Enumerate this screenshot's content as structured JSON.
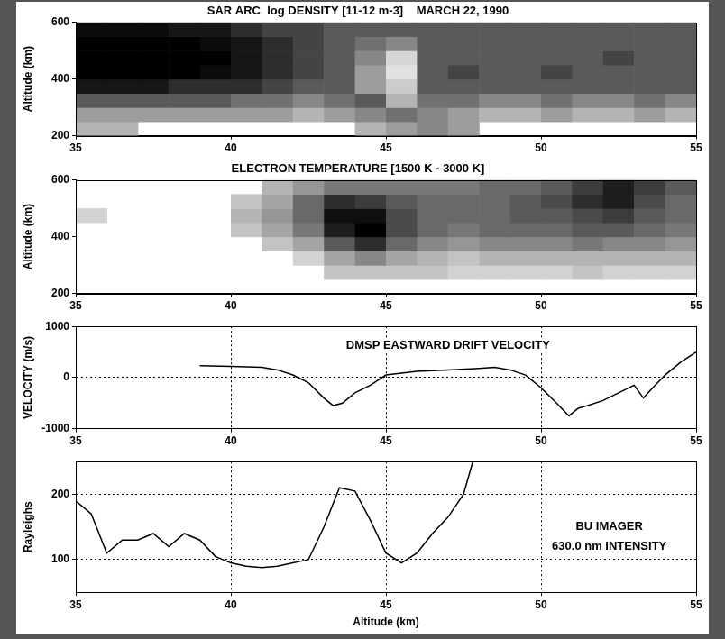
{
  "chart_data": [
    {
      "type": "heatmap",
      "title": "SAR ARC  log DENSITY [11-12 m-3]    MARCH 22, 1990",
      "y_label": "Altitude (km)",
      "x_bins": [
        35,
        36,
        37,
        38,
        39,
        40,
        41,
        42,
        43,
        44,
        45,
        46,
        47,
        48,
        49,
        50,
        51,
        52,
        53,
        54,
        55
      ],
      "y_bins": [
        200,
        250,
        300,
        350,
        400,
        450,
        500,
        550,
        600
      ],
      "cells": [
        [
          11.2,
          11.2,
          null,
          null,
          null,
          null,
          null,
          null,
          null,
          11.2,
          11.3,
          11.4,
          11.3,
          null,
          null,
          null,
          null,
          null,
          null,
          null
        ],
        [
          11.3,
          11.3,
          11.3,
          11.3,
          11.3,
          11.3,
          11.3,
          11.2,
          11.3,
          11.4,
          11.5,
          11.4,
          11.3,
          11.2,
          11.2,
          11.3,
          11.2,
          11.2,
          11.3,
          11.2
        ],
        [
          11.6,
          11.6,
          11.6,
          11.6,
          11.6,
          11.5,
          11.5,
          11.4,
          11.5,
          11.6,
          11.2,
          11.5,
          11.5,
          11.4,
          11.4,
          11.5,
          11.4,
          11.4,
          11.5,
          11.4
        ],
        [
          11.9,
          11.9,
          11.9,
          11.8,
          11.8,
          11.8,
          11.7,
          11.6,
          11.6,
          11.3,
          11.1,
          11.6,
          11.6,
          11.6,
          11.6,
          11.6,
          11.6,
          11.6,
          11.6,
          11.6
        ],
        [
          12,
          12,
          12,
          12,
          11.95,
          11.9,
          11.8,
          11.7,
          11.6,
          11.3,
          11.0,
          11.6,
          11.7,
          11.6,
          11.6,
          11.7,
          11.6,
          11.6,
          11.6,
          11.6
        ],
        [
          12,
          12,
          12,
          12,
          12,
          11.9,
          11.8,
          11.7,
          11.6,
          11.4,
          11.05,
          11.6,
          11.6,
          11.6,
          11.6,
          11.6,
          11.6,
          11.7,
          11.6,
          11.6
        ],
        [
          12,
          12,
          12,
          12,
          11.95,
          11.9,
          11.8,
          11.7,
          11.6,
          11.5,
          11.4,
          11.6,
          11.6,
          11.6,
          11.6,
          11.6,
          11.6,
          11.6,
          11.6,
          11.6
        ],
        [
          11.95,
          11.95,
          11.95,
          11.9,
          11.9,
          11.8,
          11.7,
          11.7,
          11.6,
          11.6,
          11.6,
          11.6,
          11.6,
          11.6,
          11.6,
          11.6,
          11.6,
          11.6,
          11.6,
          11.6
        ]
      ],
      "zlim": [
        11,
        12
      ],
      "xlim": [
        35,
        55
      ],
      "xticks": [
        35,
        40,
        45,
        50,
        55
      ],
      "ylim": [
        200,
        600
      ],
      "yticks": [
        200,
        400,
        600
      ],
      "grid": false
    },
    {
      "type": "heatmap",
      "title": "ELECTRON TEMPERATURE [1500 K - 3000 K]",
      "y_label": "Altitude (km)",
      "x_bins": [
        35,
        36,
        37,
        38,
        39,
        40,
        41,
        42,
        43,
        44,
        45,
        46,
        47,
        48,
        49,
        50,
        51,
        52,
        53,
        54,
        55
      ],
      "y_bins": [
        200,
        250,
        300,
        350,
        400,
        450,
        500,
        550,
        600
      ],
      "cells": [
        [
          null,
          null,
          null,
          null,
          null,
          null,
          null,
          null,
          null,
          null,
          null,
          null,
          null,
          null,
          null,
          null,
          null,
          null,
          null,
          null
        ],
        [
          null,
          null,
          null,
          null,
          null,
          null,
          null,
          null,
          1700,
          1700,
          1700,
          1700,
          1600,
          1600,
          1600,
          1600,
          1700,
          1600,
          1600,
          1600
        ],
        [
          null,
          null,
          null,
          null,
          null,
          null,
          null,
          1600,
          1900,
          2100,
          1900,
          1800,
          1700,
          1800,
          1800,
          1800,
          1800,
          1800,
          1800,
          1800
        ],
        [
          null,
          null,
          null,
          null,
          null,
          null,
          1700,
          1900,
          2400,
          2700,
          2300,
          2100,
          2000,
          2100,
          2100,
          2100,
          2200,
          2100,
          2100,
          2000
        ],
        [
          null,
          null,
          null,
          null,
          null,
          1700,
          1900,
          2200,
          2800,
          3000,
          2500,
          2300,
          2200,
          2300,
          2300,
          2300,
          2400,
          2400,
          2300,
          2200
        ],
        [
          1600,
          null,
          null,
          null,
          null,
          1800,
          2000,
          2300,
          2900,
          2900,
          2500,
          2300,
          2300,
          2300,
          2400,
          2400,
          2500,
          2600,
          2400,
          2300
        ],
        [
          null,
          null,
          null,
          null,
          null,
          1700,
          1900,
          2300,
          2700,
          2600,
          2400,
          2300,
          2300,
          2300,
          2400,
          2500,
          2700,
          2800,
          2500,
          2300
        ],
        [
          null,
          null,
          null,
          null,
          null,
          null,
          1800,
          2000,
          2200,
          2200,
          2200,
          2200,
          2200,
          2300,
          2300,
          2400,
          2600,
          2800,
          2600,
          2400
        ]
      ],
      "zlim": [
        1500,
        3000
      ],
      "xlim": [
        35,
        55
      ],
      "xticks": [
        35,
        40,
        45,
        50,
        55
      ],
      "ylim": [
        200,
        600
      ],
      "yticks": [
        200,
        400,
        600
      ],
      "grid": false
    },
    {
      "type": "line",
      "y_label": "VELOCITY (m/s)",
      "color": "#000000",
      "annotations": [
        {
          "text": "DMSP EASTWARD DRIFT VELOCITY",
          "x": 47,
          "y": 620
        }
      ],
      "x": [
        39,
        40,
        41,
        41.5,
        42,
        42.5,
        43,
        43.3,
        43.6,
        44,
        44.5,
        45,
        46,
        47,
        48,
        48.5,
        49,
        49.5,
        50,
        50.5,
        50.9,
        51.2,
        51.5,
        52,
        52.5,
        53,
        53.3,
        53.6,
        54,
        54.5,
        55
      ],
      "values": [
        230,
        220,
        200,
        150,
        50,
        -100,
        -400,
        -550,
        -500,
        -300,
        -150,
        50,
        120,
        150,
        180,
        200,
        150,
        50,
        -200,
        -500,
        -750,
        -600,
        -550,
        -450,
        -300,
        -150,
        -400,
        -200,
        50,
        300,
        500
      ],
      "xlim": [
        35,
        55
      ],
      "xticks": [
        35,
        40,
        45,
        50,
        55
      ],
      "ylim": [
        -1000,
        1000
      ],
      "yticks": [
        -1000,
        0,
        1000
      ],
      "grid": true
    },
    {
      "type": "line",
      "y_label": "Rayleighs",
      "x_label": "Altitude (km)",
      "color": "#000000",
      "annotations": [
        {
          "text": "BU IMAGER",
          "x": 52.2,
          "y": 150
        },
        {
          "text": "630.0 nm INTENSITY",
          "x": 52.2,
          "y": 120
        }
      ],
      "x": [
        35,
        35.5,
        36,
        36.5,
        37,
        37.5,
        38,
        38.5,
        39,
        39.5,
        40,
        40.5,
        41,
        41.5,
        42,
        42.5,
        43,
        43.5,
        44,
        44.5,
        45,
        45.5,
        46,
        46.5,
        47,
        47.5,
        47.8
      ],
      "values": [
        190,
        170,
        110,
        130,
        130,
        140,
        120,
        140,
        130,
        105,
        95,
        90,
        88,
        90,
        95,
        100,
        150,
        210,
        205,
        160,
        110,
        95,
        110,
        140,
        165,
        200,
        250
      ],
      "xlim": [
        35,
        55
      ],
      "xticks": [
        35,
        40,
        45,
        50,
        55
      ],
      "ylim": [
        50,
        250
      ],
      "yticks": [
        100,
        200
      ],
      "grid": true
    }
  ]
}
